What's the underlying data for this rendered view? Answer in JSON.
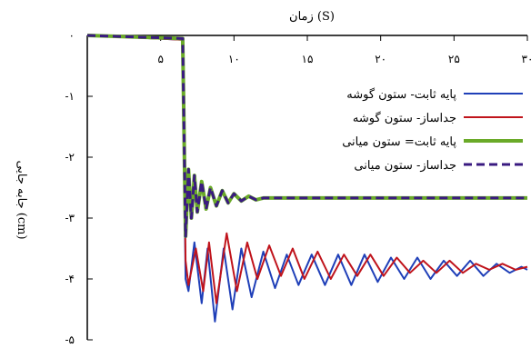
{
  "chart_data": {
    "type": "line",
    "title": "",
    "xlabel": "زمان (S)",
    "ylabel": "جابه جایی (cm)",
    "xlim": [
      0,
      30
    ],
    "ylim": [
      -5,
      0
    ],
    "x_ticks": [
      0,
      5,
      10,
      15,
      20,
      25,
      30
    ],
    "x_tick_labels": [
      "",
      "۵",
      "۱۰",
      "۱۵",
      "۲۰",
      "۲۵",
      "۳۰"
    ],
    "y_ticks": [
      0,
      -1,
      -2,
      -3,
      -4,
      -5
    ],
    "y_tick_labels": [
      "۰",
      "-۱",
      "-۲",
      "-۳",
      "-۴",
      "-۵"
    ],
    "x_axis_position": "top",
    "grid": false,
    "legend_position": "top-right",
    "series": [
      {
        "name": "پایه ثابت- ستون گوشه",
        "color": "#1f3fb8",
        "style": "solid",
        "points": [
          [
            0,
            0
          ],
          [
            6.5,
            -0.07
          ],
          [
            6.7,
            -4.0
          ],
          [
            6.9,
            -4.2
          ],
          [
            7.3,
            -3.4
          ],
          [
            7.8,
            -4.4
          ],
          [
            8.2,
            -3.5
          ],
          [
            8.7,
            -4.7
          ],
          [
            9.3,
            -3.5
          ],
          [
            9.9,
            -4.5
          ],
          [
            10.5,
            -3.5
          ],
          [
            11.2,
            -4.3
          ],
          [
            12.0,
            -3.55
          ],
          [
            12.8,
            -4.15
          ],
          [
            13.6,
            -3.6
          ],
          [
            14.4,
            -4.1
          ],
          [
            15.3,
            -3.6
          ],
          [
            16.2,
            -4.1
          ],
          [
            17.1,
            -3.6
          ],
          [
            18.0,
            -4.1
          ],
          [
            18.9,
            -3.6
          ],
          [
            19.8,
            -4.05
          ],
          [
            20.7,
            -3.65
          ],
          [
            21.6,
            -4.0
          ],
          [
            22.5,
            -3.65
          ],
          [
            23.4,
            -4.0
          ],
          [
            24.3,
            -3.7
          ],
          [
            25.2,
            -3.95
          ],
          [
            26.1,
            -3.7
          ],
          [
            27.0,
            -3.95
          ],
          [
            27.9,
            -3.75
          ],
          [
            28.8,
            -3.9
          ],
          [
            29.6,
            -3.8
          ],
          [
            30,
            -3.85
          ]
        ]
      },
      {
        "name": "جداساز- ستون گوشه",
        "color": "#c0141c",
        "style": "solid",
        "points": [
          [
            0,
            0
          ],
          [
            6.5,
            -0.07
          ],
          [
            6.7,
            -3.7
          ],
          [
            6.9,
            -4.1
          ],
          [
            7.4,
            -3.5
          ],
          [
            7.9,
            -4.2
          ],
          [
            8.3,
            -3.4
          ],
          [
            8.8,
            -4.4
          ],
          [
            9.5,
            -3.25
          ],
          [
            10.2,
            -4.2
          ],
          [
            10.9,
            -3.4
          ],
          [
            11.6,
            -4.0
          ],
          [
            12.4,
            -3.45
          ],
          [
            13.2,
            -3.95
          ],
          [
            14.0,
            -3.5
          ],
          [
            14.8,
            -4.0
          ],
          [
            15.7,
            -3.55
          ],
          [
            16.6,
            -4.0
          ],
          [
            17.5,
            -3.6
          ],
          [
            18.4,
            -3.95
          ],
          [
            19.3,
            -3.6
          ],
          [
            20.2,
            -3.95
          ],
          [
            21.1,
            -3.65
          ],
          [
            22.0,
            -3.9
          ],
          [
            22.9,
            -3.7
          ],
          [
            23.8,
            -3.9
          ],
          [
            24.7,
            -3.7
          ],
          [
            25.6,
            -3.9
          ],
          [
            26.5,
            -3.75
          ],
          [
            27.4,
            -3.85
          ],
          [
            28.3,
            -3.75
          ],
          [
            29.2,
            -3.85
          ],
          [
            30,
            -3.8
          ]
        ]
      },
      {
        "name": "پایه ثابت= ستون میانی",
        "color": "#6aaa28",
        "style": "solid-thick",
        "points": [
          [
            0,
            0
          ],
          [
            6.5,
            -0.05
          ],
          [
            6.7,
            -3.3
          ],
          [
            6.9,
            -2.2
          ],
          [
            7.1,
            -3.0
          ],
          [
            7.3,
            -2.3
          ],
          [
            7.5,
            -2.9
          ],
          [
            7.8,
            -2.4
          ],
          [
            8.1,
            -2.85
          ],
          [
            8.4,
            -2.5
          ],
          [
            8.8,
            -2.8
          ],
          [
            9.2,
            -2.55
          ],
          [
            9.6,
            -2.75
          ],
          [
            10.0,
            -2.6
          ],
          [
            10.5,
            -2.72
          ],
          [
            11.0,
            -2.64
          ],
          [
            11.5,
            -2.7
          ],
          [
            12,
            -2.67
          ],
          [
            30,
            -2.67
          ]
        ]
      },
      {
        "name": "جداساز- ستون میانی",
        "color": "#3a1a80",
        "style": "dashed",
        "points": [
          [
            0,
            0
          ],
          [
            6.5,
            -0.05
          ],
          [
            6.7,
            -3.3
          ],
          [
            6.9,
            -2.2
          ],
          [
            7.1,
            -3.0
          ],
          [
            7.3,
            -2.3
          ],
          [
            7.5,
            -2.9
          ],
          [
            7.8,
            -2.4
          ],
          [
            8.1,
            -2.85
          ],
          [
            8.4,
            -2.5
          ],
          [
            8.8,
            -2.8
          ],
          [
            9.2,
            -2.55
          ],
          [
            9.6,
            -2.75
          ],
          [
            10.0,
            -2.6
          ],
          [
            10.5,
            -2.72
          ],
          [
            11.0,
            -2.64
          ],
          [
            11.5,
            -2.7
          ],
          [
            12,
            -2.67
          ],
          [
            30,
            -2.67
          ]
        ]
      }
    ]
  }
}
